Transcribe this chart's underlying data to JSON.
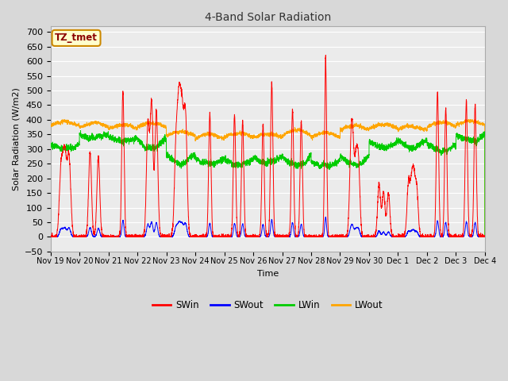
{
  "title": "4-Band Solar Radiation",
  "ylabel": "Solar Radiation (W/m2)",
  "xlabel": "Time",
  "annotation": "TZ_tmet",
  "ylim": [
    -50,
    720
  ],
  "yticks": [
    -50,
    0,
    50,
    100,
    150,
    200,
    250,
    300,
    350,
    400,
    450,
    500,
    550,
    600,
    650,
    700
  ],
  "colors": {
    "SWin": "#ff0000",
    "SWout": "#0000ff",
    "LWin": "#00cc00",
    "LWout": "#ffa500"
  },
  "fig_bg": "#d8d8d8",
  "plot_bg": "#ebebeb",
  "n_points": 4320,
  "n_days": 15,
  "xtick_labels": [
    "Nov 19",
    "Nov 20",
    "Nov 21",
    "Nov 22",
    "Nov 23",
    "Nov 24",
    "Nov 25",
    "Nov 26",
    "Nov 27",
    "Nov 28",
    "Nov 29",
    "Nov 30",
    "Dec 1",
    "Dec 2",
    "Dec 3",
    "Dec 4"
  ]
}
